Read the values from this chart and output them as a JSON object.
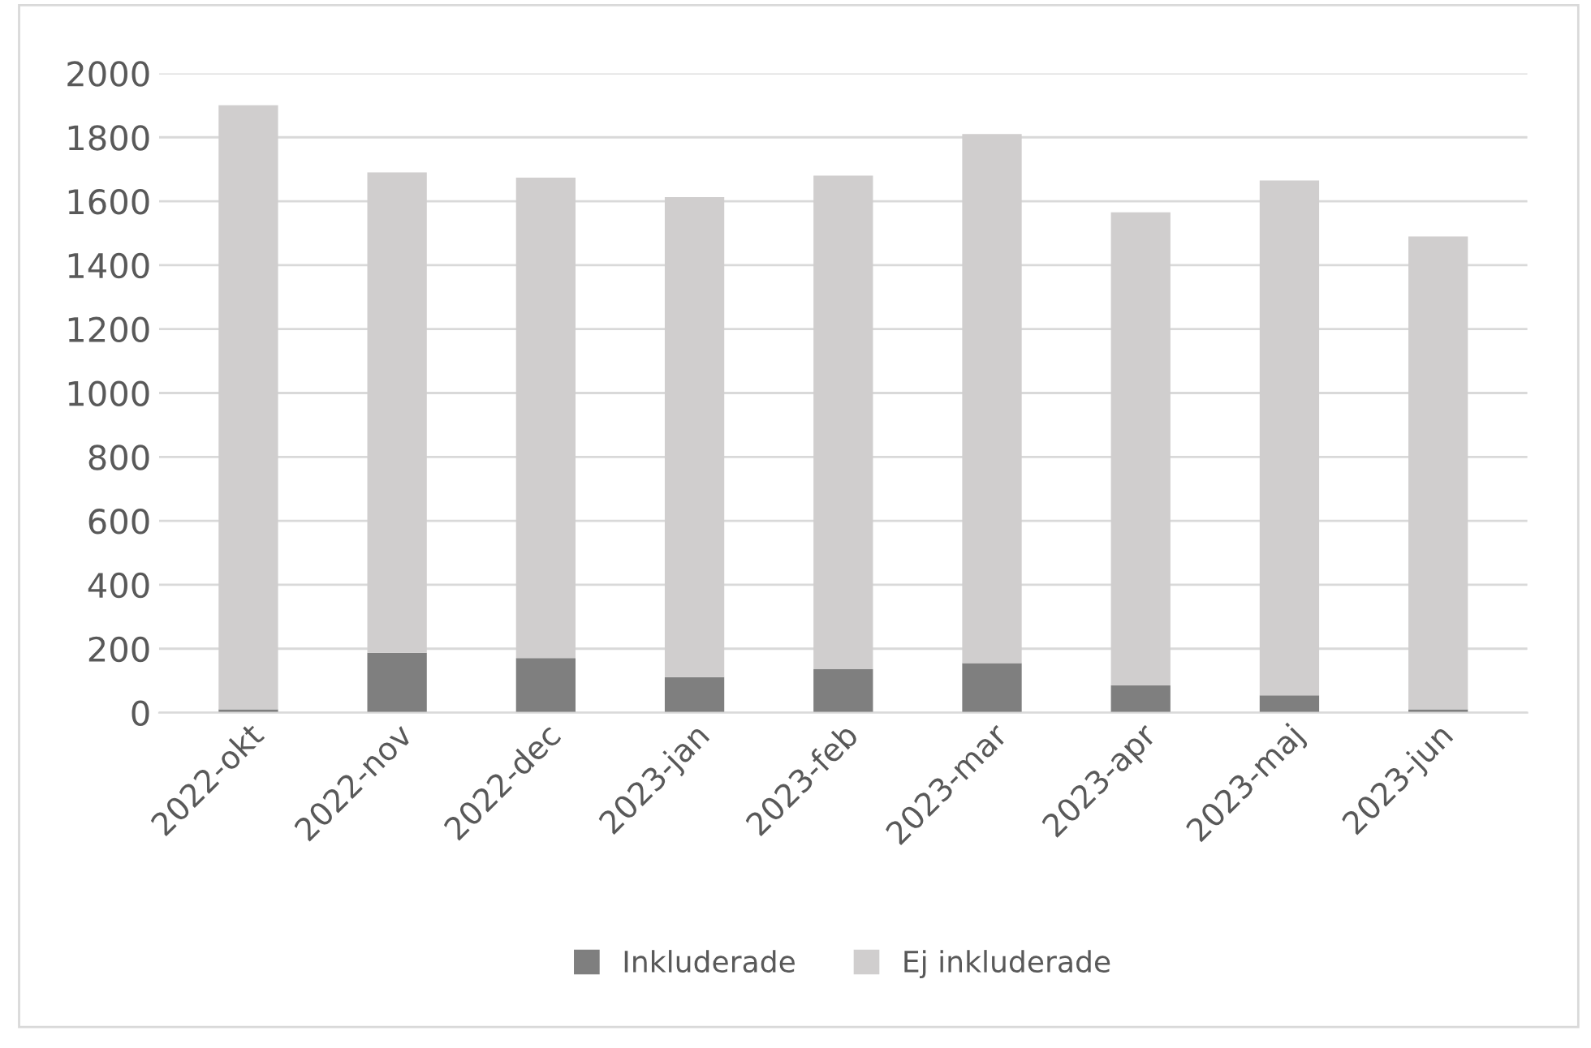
{
  "chart_data": {
    "type": "bar",
    "stacked": true,
    "categories": [
      "2022-okt",
      "2022-nov",
      "2022-dec",
      "2023-jan",
      "2023-feb",
      "2023-mar",
      "2023-apr",
      "2023-maj",
      "2023-jun"
    ],
    "series": [
      {
        "name": "Inkluderade",
        "color": "#7f7f7f",
        "values": [
          10,
          187,
          171,
          111,
          136,
          155,
          86,
          54,
          10
        ]
      },
      {
        "name": "Ej inkluderade",
        "color": "#d0cece",
        "values": [
          1890,
          1503,
          1503,
          1502,
          1544,
          1655,
          1479,
          1611,
          1480
        ]
      }
    ],
    "ylim": [
      0,
      2000
    ],
    "yticks": [
      0,
      200,
      400,
      600,
      800,
      1000,
      1200,
      1400,
      1600,
      1800,
      2000
    ],
    "grid": "y",
    "legend": "bottom"
  }
}
